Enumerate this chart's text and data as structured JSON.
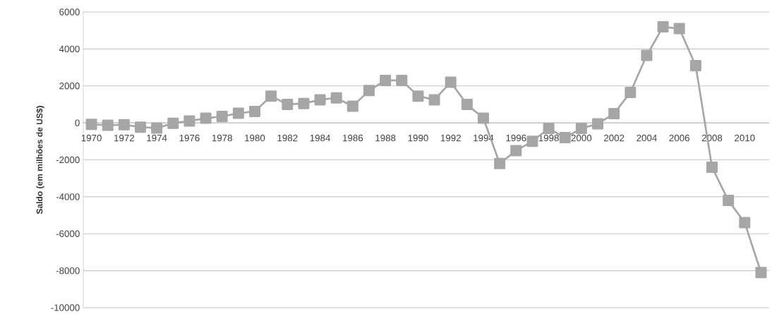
{
  "chart_data": {
    "type": "line",
    "ylabel": "Saldo (em milhões de US$)",
    "categories": [
      "1970",
      null,
      "1972",
      null,
      "1974",
      null,
      "1976",
      null,
      "1978",
      null,
      "1980",
      null,
      "1982",
      null,
      "1984",
      null,
      "1986",
      null,
      "1988",
      null,
      "1990",
      null,
      "1992",
      null,
      "1994",
      null,
      "1996",
      null,
      "1998",
      null,
      "2000",
      null,
      "2002",
      null,
      "2004",
      null,
      "2006",
      null,
      "2008",
      null,
      "2010",
      null
    ],
    "series": [
      {
        "color": "#a6a6a6",
        "values": [
          -80,
          -130,
          -100,
          -230,
          -280,
          -20,
          100,
          250,
          350,
          520,
          620,
          1450,
          1000,
          1050,
          1250,
          1350,
          900,
          1750,
          2300,
          2300,
          1450,
          1250,
          2200,
          1000,
          250,
          -2200,
          -1500,
          -1000,
          -300,
          -800,
          -300,
          -50,
          500,
          1650,
          3650,
          5200,
          5100,
          3100,
          -2400,
          -4200,
          -5400,
          -8100
        ]
      }
    ],
    "ylim": [
      -10000,
      6000
    ],
    "yticks": [
      -10000,
      -8000,
      -6000,
      -4000,
      -2000,
      0,
      2000,
      4000,
      6000
    ],
    "grid": "y",
    "marker": "square",
    "line_style": "solid"
  }
}
